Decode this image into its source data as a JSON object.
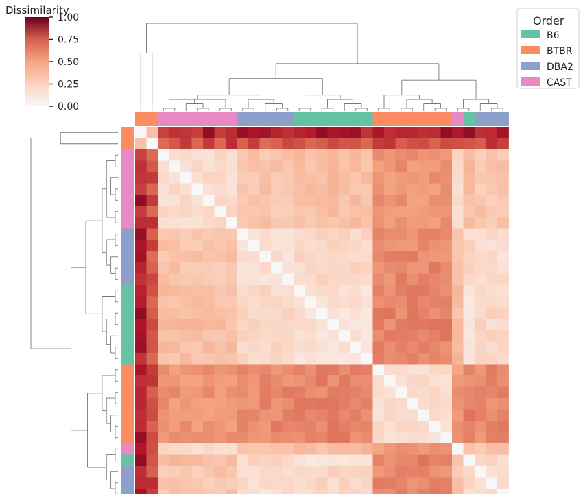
{
  "chart_data": {
    "type": "heatmap",
    "title": "",
    "colorbar": {
      "label": "Dissimilarity",
      "ticks": [
        0.0,
        0.25,
        0.5,
        0.75,
        1.0
      ],
      "tick_labels": [
        "0.00",
        "0.25",
        "0.50",
        "0.75",
        "1.00"
      ],
      "range": [
        0,
        1
      ],
      "colormap": "RdBu_r (upper half)"
    },
    "legend": {
      "title": "Order",
      "placement": "top-right",
      "items": [
        {
          "label": "B6",
          "color": "#66c2a5"
        },
        {
          "label": "BTBR",
          "color": "#fc8d62"
        },
        {
          "label": "DBA2",
          "color": "#8da0cb"
        },
        {
          "label": "CAST",
          "color": "#e78ac3"
        }
      ]
    },
    "dendrograms": [
      "rows",
      "columns"
    ],
    "row_groups": [
      "BTBR",
      "BTBR",
      "CAST",
      "CAST",
      "CAST",
      "CAST",
      "CAST",
      "CAST",
      "CAST",
      "DBA2",
      "DBA2",
      "DBA2",
      "DBA2",
      "DBA2",
      "B6",
      "B6",
      "B6",
      "B6",
      "B6",
      "B6",
      "B6",
      "BTBR",
      "BTBR",
      "BTBR",
      "BTBR",
      "BTBR",
      "BTBR",
      "BTBR",
      "CAST",
      "B6",
      "DBA2",
      "DBA2",
      "DBA2"
    ],
    "block_values": {
      "B6": {
        "B6": 0.15,
        "BTBR": 0.62,
        "DBA2": 0.22,
        "CAST": 0.36
      },
      "BTBR": {
        "B6": 0.62,
        "BTBR": 0.18,
        "DBA2": 0.6,
        "CAST": 0.56
      },
      "DBA2": {
        "B6": 0.22,
        "BTBR": 0.6,
        "DBA2": 0.18,
        "CAST": 0.32
      },
      "CAST": {
        "B6": 0.36,
        "BTBR": 0.56,
        "DBA2": 0.32,
        "CAST": 0.2
      }
    },
    "outlier_values": {
      "row0_vs_other": 0.88,
      "row1_vs_other": 0.78,
      "row0_vs_row1": 0.35
    }
  }
}
